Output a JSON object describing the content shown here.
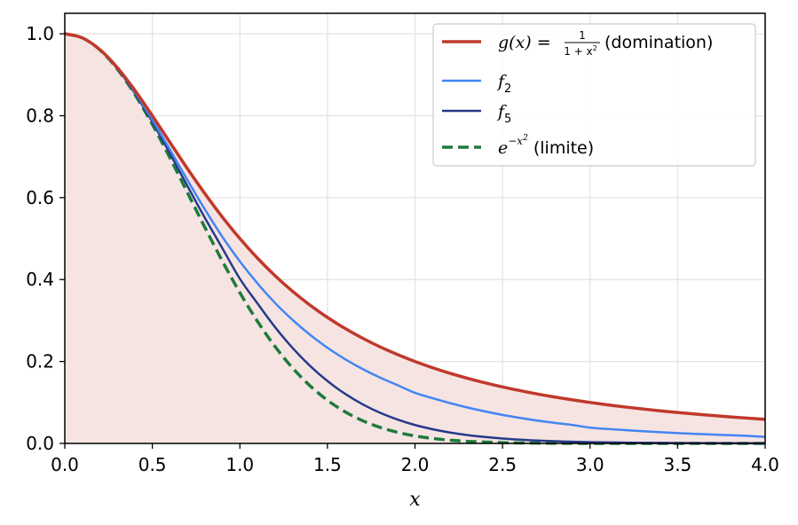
{
  "chart_data": {
    "type": "line",
    "xlabel": "x",
    "ylabel": "",
    "title": "",
    "xlim": [
      0,
      4
    ],
    "ylim": [
      0,
      1.05
    ],
    "xticks": [
      0.0,
      0.5,
      1.0,
      1.5,
      2.0,
      2.5,
      3.0,
      3.5,
      4.0
    ],
    "xtick_labels": [
      "0.0",
      "0.5",
      "1.0",
      "1.5",
      "2.0",
      "2.5",
      "3.0",
      "3.5",
      "4.0"
    ],
    "yticks": [
      0.0,
      0.2,
      0.4,
      0.6,
      0.8,
      1.0
    ],
    "ytick_labels": [
      "0.0",
      "0.2",
      "0.4",
      "0.6",
      "0.8",
      "1.0"
    ],
    "grid": true,
    "legend_position": "top-right",
    "shaded_region": {
      "under_series": "g",
      "color": "#f6e4e3"
    },
    "x": [
      0.0,
      0.1,
      0.2,
      0.3,
      0.4,
      0.5,
      0.6,
      0.7,
      0.8,
      0.9,
      1.0,
      1.1,
      1.2,
      1.3,
      1.4,
      1.5,
      1.6,
      1.7,
      1.8,
      1.9,
      2.0,
      2.1,
      2.2,
      2.3,
      2.4,
      2.5,
      2.6,
      2.7,
      2.8,
      2.9,
      3.0,
      3.1,
      3.2,
      3.3,
      3.4,
      3.5,
      3.6,
      3.7,
      3.8,
      3.9,
      4.0
    ],
    "series": [
      {
        "id": "g",
        "legend": {
          "prefix": "g(x) = ",
          "numerator": "1",
          "denominator": "1 + x",
          "denominator_sup": "2",
          "suffix": " (domination)"
        },
        "color": "#c0392b",
        "style": "solid",
        "width": 3.5,
        "values": [
          1.0,
          0.9901,
          0.9615,
          0.9174,
          0.8621,
          0.8,
          0.7353,
          0.6711,
          0.6098,
          0.5525,
          0.5,
          0.4525,
          0.4098,
          0.3717,
          0.3378,
          0.3077,
          0.2809,
          0.2571,
          0.2358,
          0.217,
          0.2,
          0.1848,
          0.1712,
          0.159,
          0.1479,
          0.1379,
          0.1289,
          0.1206,
          0.1131,
          0.1063,
          0.1,
          0.0942,
          0.0889,
          0.0841,
          0.0796,
          0.0755,
          0.0716,
          0.0681,
          0.0648,
          0.0617,
          0.0588
        ]
      },
      {
        "id": "f2",
        "legend": {
          "base": "f",
          "sub": "2"
        },
        "color": "#4285f4",
        "style": "solid",
        "width": 2.5,
        "values": [
          1.0,
          0.99,
          0.9612,
          0.916,
          0.8581,
          0.7901,
          0.7177,
          0.6433,
          0.5714,
          0.5043,
          0.4444,
          0.3909,
          0.3433,
          0.3019,
          0.2655,
          0.2336,
          0.2059,
          0.1818,
          0.1607,
          0.1423,
          0.1235,
          0.1105,
          0.0984,
          0.0877,
          0.0782,
          0.0695,
          0.0622,
          0.0557,
          0.05,
          0.045,
          0.0385,
          0.0353,
          0.0324,
          0.0297,
          0.0274,
          0.0252,
          0.0233,
          0.0216,
          0.02,
          0.0185,
          0.016
        ]
      },
      {
        "id": "f5",
        "legend": {
          "base": "f",
          "sub": "5"
        },
        "color": "#253a8a",
        "style": "solid",
        "width": 2.5,
        "values": [
          1.0,
          0.99,
          0.9609,
          0.9149,
          0.8551,
          0.7847,
          0.7079,
          0.6287,
          0.5507,
          0.4764,
          0.4019,
          0.342,
          0.2843,
          0.2335,
          0.1896,
          0.1523,
          0.1213,
          0.0957,
          0.0749,
          0.0583,
          0.0449,
          0.0347,
          0.0266,
          0.0204,
          0.0156,
          0.0119,
          0.0091,
          0.0069,
          0.0053,
          0.0041,
          0.0031,
          0.0024,
          0.0019,
          0.0014,
          0.0011,
          0.0009,
          0.0007,
          0.0005,
          0.0004,
          0.0003,
          0.0003
        ]
      },
      {
        "id": "limit",
        "legend": {
          "base": "e",
          "sup": "−x",
          "supsup": "2",
          "suffix": " (limite)"
        },
        "color": "#1e7b3a",
        "style": "dashed",
        "width": 3.5,
        "values": [
          1.0,
          0.99,
          0.9608,
          0.9139,
          0.8521,
          0.7788,
          0.6977,
          0.6126,
          0.5273,
          0.4449,
          0.3679,
          0.2982,
          0.2369,
          0.1845,
          0.1409,
          0.1054,
          0.0773,
          0.0556,
          0.0392,
          0.0271,
          0.0183,
          0.0122,
          0.0079,
          0.005,
          0.0032,
          0.0019,
          0.0012,
          0.0007,
          0.0004,
          0.0002,
          0.0001,
          0.0001,
          0.0,
          0.0,
          0.0,
          0.0,
          0.0,
          0.0,
          0.0,
          0.0,
          0.0
        ]
      }
    ]
  }
}
